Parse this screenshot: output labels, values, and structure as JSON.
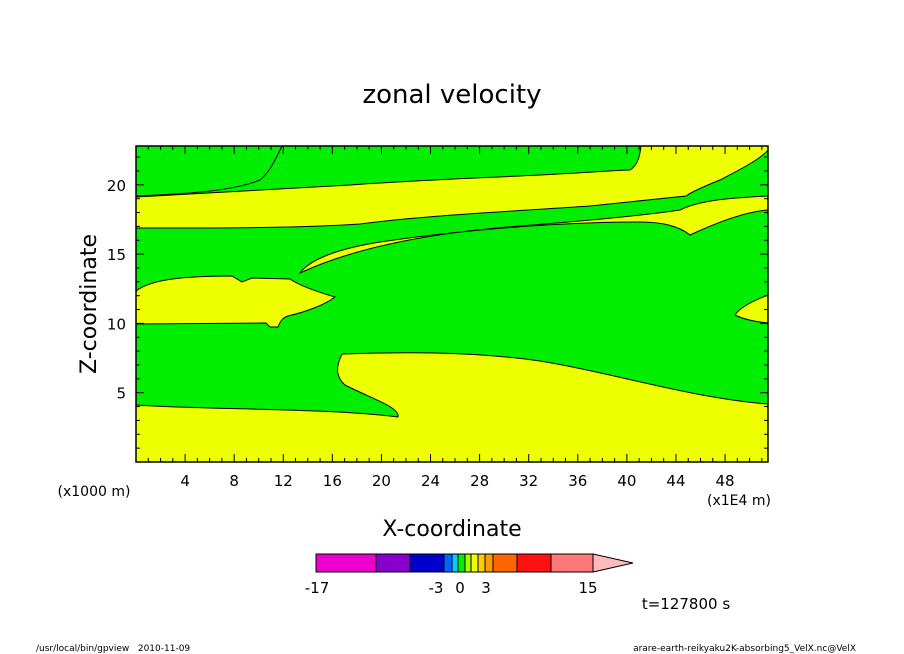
{
  "chart_data": {
    "type": "contour",
    "title": "zonal velocity",
    "xlabel": "X-coordinate",
    "ylabel": "Z-coordinate",
    "x_unit_left": "(x1000 m)",
    "x_unit_right": "(x1E4 m)",
    "xlim": [
      0,
      51.5
    ],
    "ylim": [
      0,
      22.8
    ],
    "x_ticks": [
      "4",
      "8",
      "12",
      "16",
      "20",
      "24",
      "28",
      "32",
      "36",
      "40",
      "44",
      "48"
    ],
    "x_tick_values": [
      4,
      8,
      12,
      16,
      20,
      24,
      28,
      32,
      36,
      40,
      44,
      48
    ],
    "y_ticks": [
      "5",
      "10",
      "15",
      "20"
    ],
    "y_tick_values": [
      5,
      10,
      15,
      20
    ],
    "fill_colors": {
      "band_low": "#00ee00",
      "band_high": "#eeff00"
    },
    "colorbar": {
      "labels": [
        "-17",
        "-3",
        "0",
        "3",
        "15"
      ],
      "colors": [
        "#ee00cc",
        "#8800cc",
        "#0000cc",
        "#0066ff",
        "#00ccff",
        "#00ee00",
        "#aaff00",
        "#eeff00",
        "#ffcc00",
        "#ff9900",
        "#ff6600",
        "#ff1111",
        "#ff7777",
        "#ffbbbb"
      ],
      "min": -17,
      "max": 15,
      "extend": "max"
    },
    "time_label": "t=127800 s"
  },
  "footer": {
    "left": "/usr/local/bin/gpview   2010-11-09",
    "right": "arare-earth-reikyaku2K-absorbing5_VelX.nc@VelX"
  }
}
